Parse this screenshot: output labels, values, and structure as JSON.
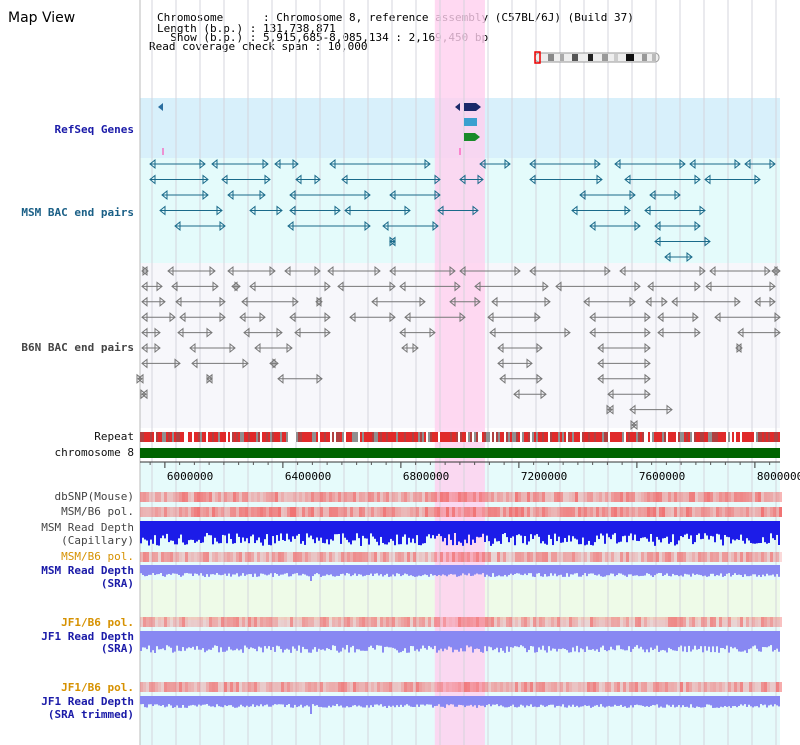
{
  "page": {
    "title": "Map View"
  },
  "header": {
    "lines": [
      "Chromosome      : Chromosome 8, reference assembly (C57BL/6J) (Build 37)",
      "Length (b.p.) : 131,738,871",
      "  Show (b.p.) : 5,915,685-8,085,134 : 2,169,450 bp",
      "Read coverage check span : 10,000"
    ]
  },
  "tracks": {
    "refseq": "RefSeq Genes",
    "msm_bac": "MSM BAC end pairs",
    "b6n_bac": "B6N BAC end pairs",
    "repeat": "Repeat",
    "chromosome": "chromosome 8",
    "dbsnp": "dbSNP(Mouse)",
    "msm_b6_pol_1": "MSM/B6 pol.",
    "msm_read_depth_cap_1": "MSM Read Depth",
    "msm_read_depth_cap_2": "(Capillary)",
    "msm_b6_pol_2": "MSM/B6 pol.",
    "msm_read_depth_sra_1": "MSM Read Depth",
    "msm_read_depth_sra_2": "(SRA)",
    "jf1_b6_pol_1": "JF1/B6 pol.",
    "jf1_read_depth_1": "JF1 Read Depth",
    "jf1_read_depth_2": "(SRA)",
    "jf1_b6_pol_2": "JF1/B6 pol.",
    "jf1_read_depth_trim_1": "JF1 Read Depth",
    "jf1_read_depth_trim_2": "(SRA trimmed)"
  },
  "axis": {
    "ticks": [
      "6000000",
      "6400000",
      "6800000",
      "7200000",
      "7600000",
      "8000000"
    ],
    "tick_values": [
      6000000,
      6400000,
      6800000,
      7200000,
      7600000,
      8000000
    ],
    "range": [
      5915685,
      8085134
    ]
  },
  "highlight": {
    "start": 6915000,
    "end": 7085000
  },
  "colors": {
    "highlight": "#ffd0ef",
    "refseq_bg": "#d8f0fb",
    "msm_bg": "#e4fbfb",
    "b6n_bg": "#f7f7fb",
    "chromosome_bar": "#006400",
    "snp": "#f06b6b",
    "read_depth": "#1c1ce8",
    "read_depth_light": "#8888f2"
  }
}
